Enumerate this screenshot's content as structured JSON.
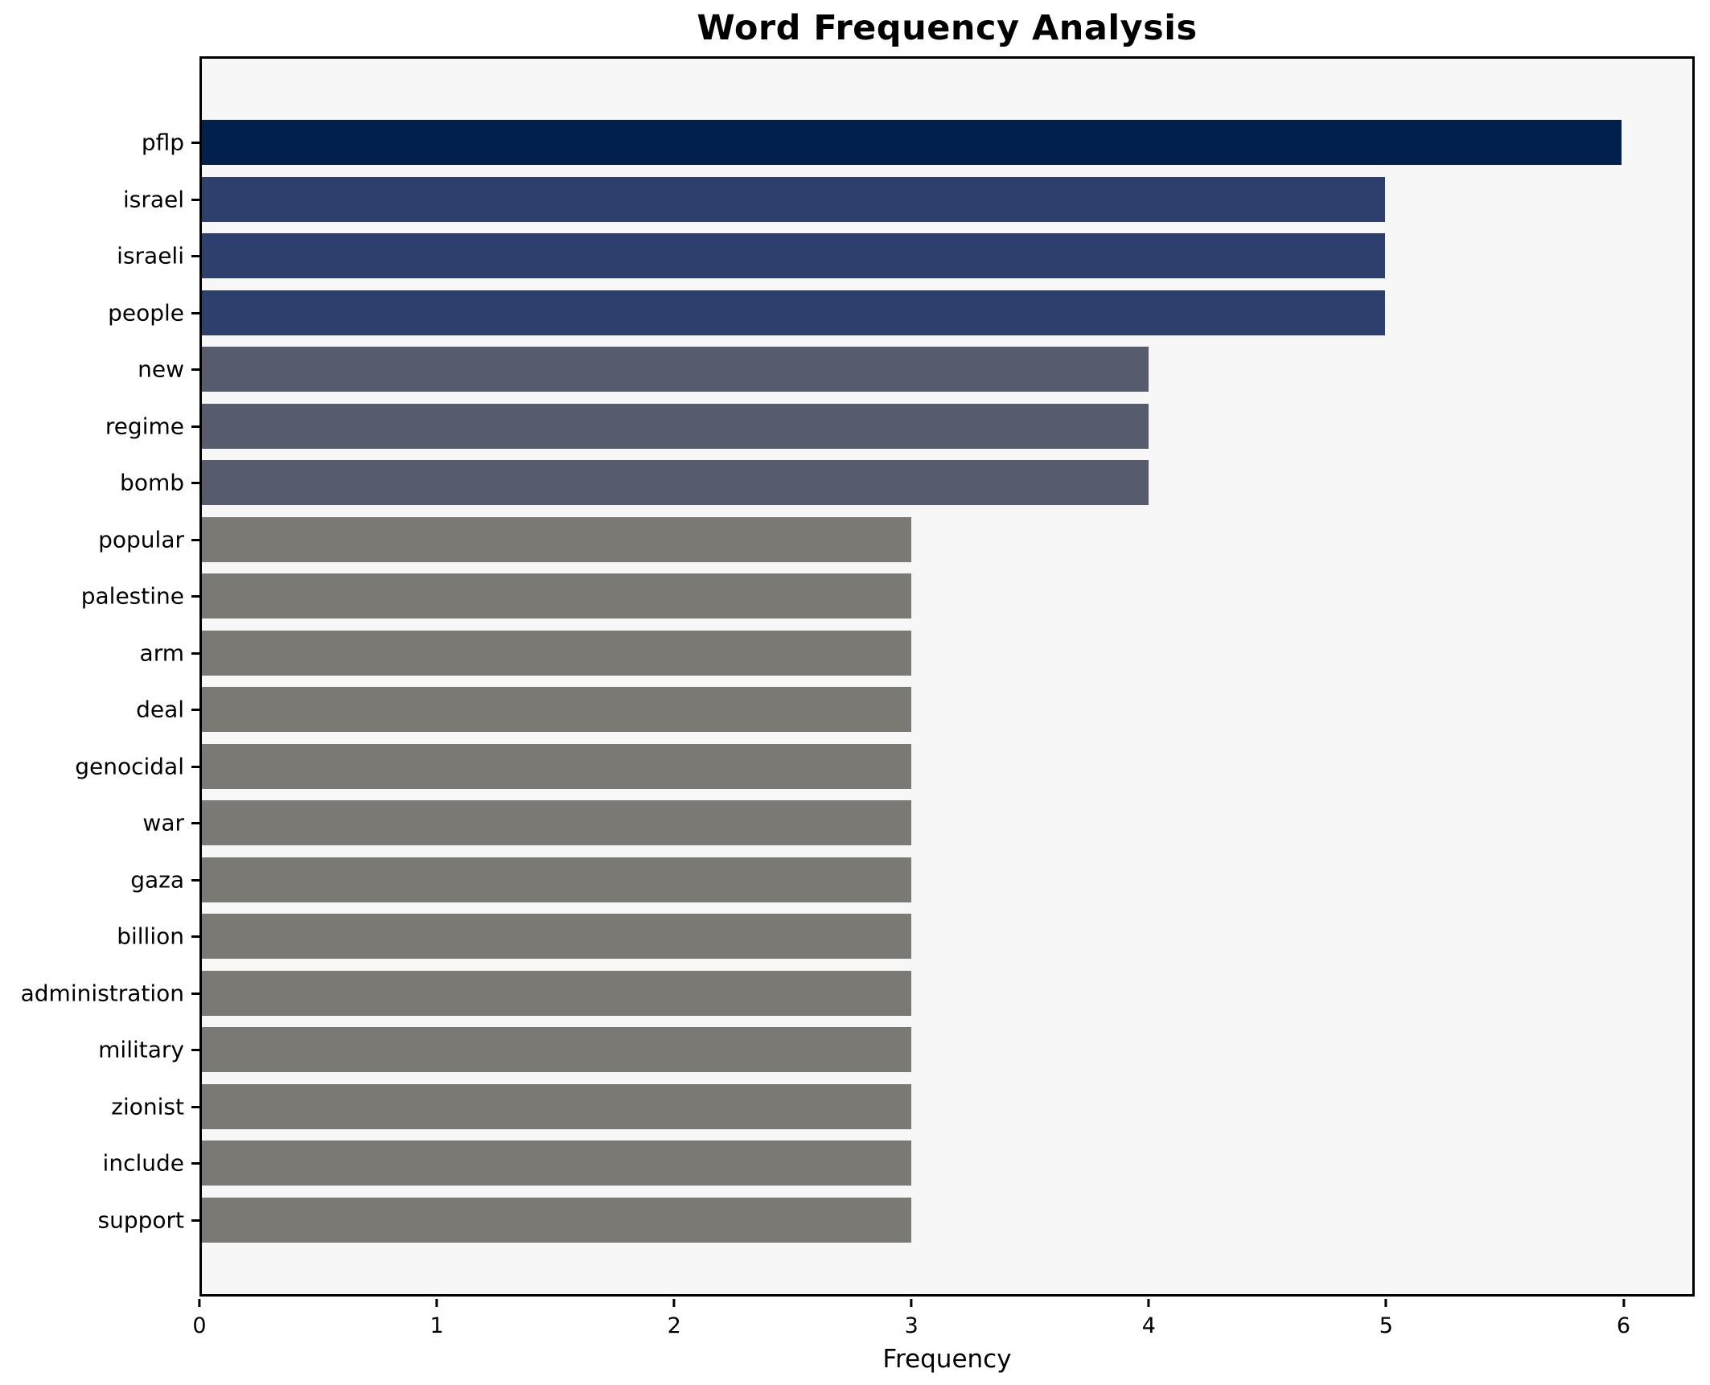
{
  "title": "Word Frequency Analysis",
  "chart_data": {
    "type": "bar",
    "orientation": "horizontal",
    "title": "Word Frequency Analysis",
    "xlabel": "Frequency",
    "ylabel": "",
    "categories": [
      "pflp",
      "israel",
      "israeli",
      "people",
      "new",
      "regime",
      "bomb",
      "popular",
      "palestine",
      "arm",
      "deal",
      "genocidal",
      "war",
      "gaza",
      "billion",
      "administration",
      "military",
      "zionist",
      "include",
      "support"
    ],
    "values": [
      6,
      5,
      5,
      5,
      4,
      4,
      4,
      3,
      3,
      3,
      3,
      3,
      3,
      3,
      3,
      3,
      3,
      3,
      3,
      3
    ],
    "bar_colors": [
      "#01214c",
      "#2d3f6c",
      "#2d3f6c",
      "#2d3f6c",
      "#565c6c",
      "#565c6c",
      "#565c6c",
      "#7b7974",
      "#7b7974",
      "#7b7974",
      "#7b7974",
      "#7b7974",
      "#7b7974",
      "#7b7974",
      "#7b7974",
      "#7b7974",
      "#7b7974",
      "#7b7974",
      "#7b7974",
      "#7b7974"
    ],
    "xticks": [
      "0",
      "1",
      "2",
      "3",
      "4",
      "5",
      "6"
    ],
    "xtick_values": [
      0,
      1,
      2,
      3,
      4,
      5,
      6
    ],
    "xlim": [
      0,
      6.3
    ],
    "grid": false,
    "legend": null,
    "colors": {
      "plot_background": "#f7f7f8",
      "figure_background": "#ffffff",
      "spine": "#000000",
      "text": "#000000"
    }
  }
}
